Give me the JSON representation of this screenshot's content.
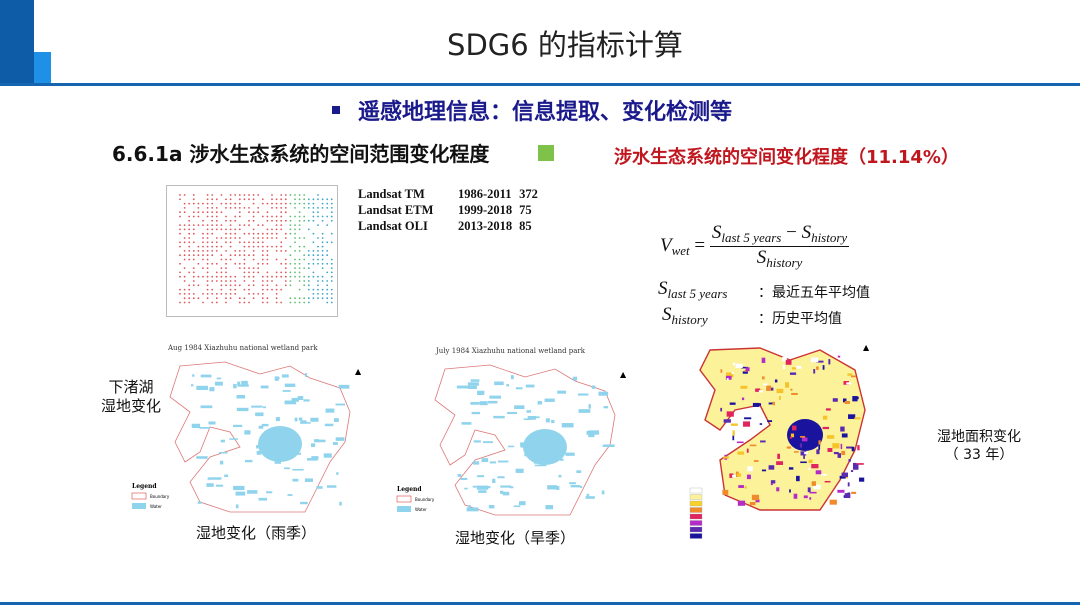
{
  "header": {
    "title": "SDG6 的指标计算"
  },
  "bullet": "遥感地理信息：信息提取、变化检测等",
  "section_title": "6.6.1a 涉水生态系统的空间范围变化程度",
  "result_heading": "涉水生态系统的空间变化程度（11.14%）",
  "landsat": [
    {
      "name": "Landsat TM",
      "years": "1986-2011",
      "count": "372"
    },
    {
      "name": "Landsat ETM",
      "years": "1999-2018",
      "count": "75"
    },
    {
      "name": "Landsat OLI",
      "years": "2013-2018",
      "count": "85"
    }
  ],
  "formula": {
    "lhs": "V",
    "lhs_sub": "wet",
    "num_a": "S",
    "num_a_sub": "last 5 years",
    "minus": " − ",
    "num_b": "S",
    "num_b_sub": "history",
    "den": "S",
    "den_sub": "history"
  },
  "definitions": [
    {
      "sym": "S",
      "sub": "last 5 years",
      "text": "：最近五年平均值"
    },
    {
      "sym": "S",
      "sub": "history",
      "text": "：历史平均值"
    }
  ],
  "maps": {
    "rainy": {
      "title": "Aug  1984  Xiazhuhu national wetland park",
      "caption": "湿地变化（雨季）",
      "legend": "Legend",
      "boundary": "Boundary",
      "water": "Water"
    },
    "dry": {
      "title": "July 1984  Xiazhuhu national wetland park",
      "caption": "湿地变化（旱季）",
      "legend": "Legend",
      "boundary": "Boundary",
      "water": "Water"
    },
    "change": {
      "caption_line1": "湿地面积变化",
      "caption_line2": "（ 33 年）"
    }
  },
  "side_label": {
    "line1": "下渚湖",
    "line2": "湿地变化"
  },
  "colors": {
    "dark_blue": "#0e5ca8",
    "light_blue": "#1e90e6",
    "bullet": "#1a1a8c",
    "red": "#c0161e",
    "green": "#7fc24a",
    "water": "#8fd3ec"
  }
}
